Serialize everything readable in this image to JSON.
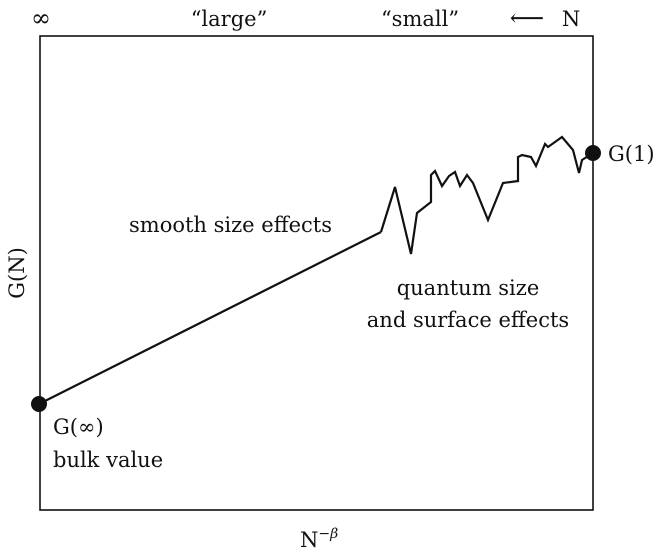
{
  "top_axis": {
    "left_end": "∞",
    "large_label": "“large”",
    "small_label": "“small”",
    "arrow": "⟵",
    "variable": "N"
  },
  "y_axis": {
    "label": "G(N)"
  },
  "x_axis": {
    "base": "N",
    "exponent": "−β"
  },
  "points": {
    "right": "G(1)",
    "left": "G(∞)",
    "left_caption": "bulk value"
  },
  "regions": {
    "smooth": "smooth size effects",
    "quantum_line1": "quantum size",
    "quantum_line2": "and surface effects"
  },
  "colors": {
    "ink": "#111111",
    "background": "#ffffff"
  }
}
